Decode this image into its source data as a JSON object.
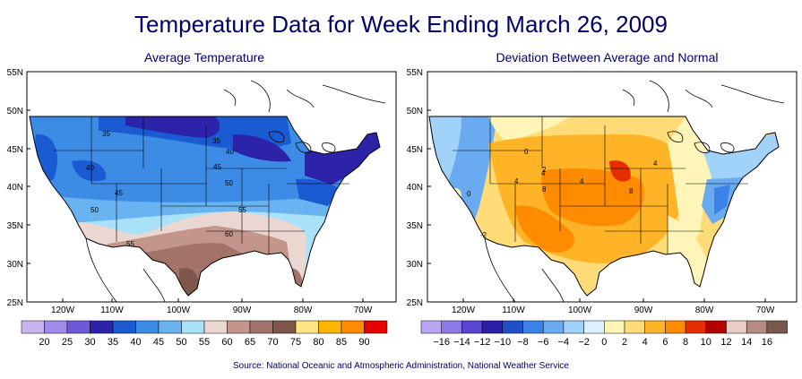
{
  "title": "Temperature Data for Week Ending March 26, 2009",
  "source": "Source:  National Oceanic and Atmospheric Administration, National Weather Service",
  "maps": [
    {
      "subtitle": "Average Temperature",
      "lat_labels": [
        "55N",
        "50N",
        "45N",
        "40N",
        "35N",
        "30N",
        "25N"
      ],
      "lon_labels": [
        "120W",
        "110W",
        "100W",
        "90W",
        "80W",
        "70W"
      ],
      "contour_labels": [
        "35",
        "35",
        "40",
        "40",
        "45",
        "45",
        "50",
        "50",
        "55",
        "55",
        "60"
      ],
      "legend_colors": [
        "#c8b4f0",
        "#9e8ce6",
        "#6e5ad6",
        "#2d23a8",
        "#1a5ad2",
        "#3c8ce6",
        "#69b4f0",
        "#a8e1f8",
        "#ebd7d2",
        "#c3968c",
        "#a37369",
        "#80574b",
        "#ffe682",
        "#ffb400",
        "#ff8c00",
        "#e60000"
      ],
      "legend_labels": [
        "20",
        "25",
        "30",
        "35",
        "40",
        "45",
        "50",
        "55",
        "60",
        "65",
        "70",
        "75",
        "80",
        "85",
        "90"
      ]
    },
    {
      "subtitle": "Deviation Between Average and Normal",
      "lat_labels": [
        "55N",
        "50N",
        "45N",
        "40N",
        "35N",
        "30N",
        "25N"
      ],
      "lon_labels": [
        "120W",
        "110W",
        "100W",
        "90W",
        "80W",
        "70W"
      ],
      "contour_labels": [
        "0",
        "4",
        "4",
        "4",
        "8",
        "8",
        "0",
        "2",
        "-2",
        "4"
      ],
      "legend_colors": [
        "#b9a5f5",
        "#8c78e6",
        "#5a46d2",
        "#2d1eaa",
        "#1e50c8",
        "#3c82e6",
        "#69aaf0",
        "#a0d2fa",
        "#dcf0ff",
        "#fff5b9",
        "#ffdc78",
        "#ffb428",
        "#ff8c00",
        "#e62d00",
        "#b40000",
        "#ebcdc8",
        "#b48c82",
        "#785a4b"
      ],
      "legend_labels": [
        "−16",
        "−14",
        "−12",
        "−10",
        "−8",
        "−6",
        "−4",
        "−2",
        "0",
        "2",
        "4",
        "6",
        "8",
        "10",
        "12",
        "14",
        "16"
      ]
    }
  ]
}
